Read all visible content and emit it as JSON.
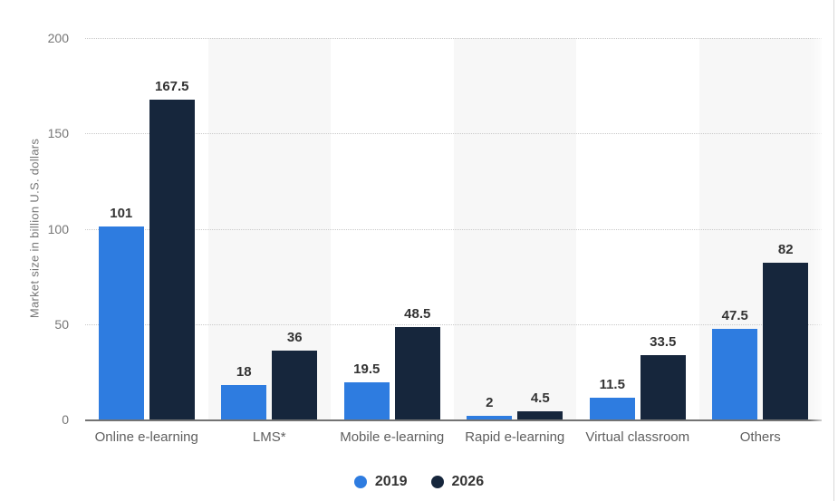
{
  "chart_data": {
    "type": "bar",
    "title": "",
    "xlabel": "",
    "ylabel": "Market size in billion U.S. dollars",
    "ylim": [
      0,
      200
    ],
    "yticks": [
      0,
      50,
      100,
      150,
      200
    ],
    "grid": "horizontal-dotted",
    "legend_position": "bottom-center",
    "categories": [
      "Online e-learning",
      "LMS*",
      "Mobile e-learning",
      "Rapid e-learning",
      "Virtual classroom",
      "Others"
    ],
    "series": [
      {
        "name": "2019",
        "color": "#2E7CE0",
        "values": [
          101,
          18,
          19.5,
          2,
          11.5,
          47.5
        ]
      },
      {
        "name": "2026",
        "color": "#16263C",
        "values": [
          167.5,
          36,
          48.5,
          4.5,
          33.5,
          82
        ]
      }
    ]
  },
  "colors": {
    "background": "#ffffff",
    "column_band": "#f7f7f7",
    "gridline": "#c9c9c9",
    "axis_line": "#737373",
    "tick_label": "#767676",
    "value_label": "#333333",
    "category_label": "#5f5f5f",
    "legend_label": "#333333",
    "right_divider": "#d8d8d8"
  }
}
